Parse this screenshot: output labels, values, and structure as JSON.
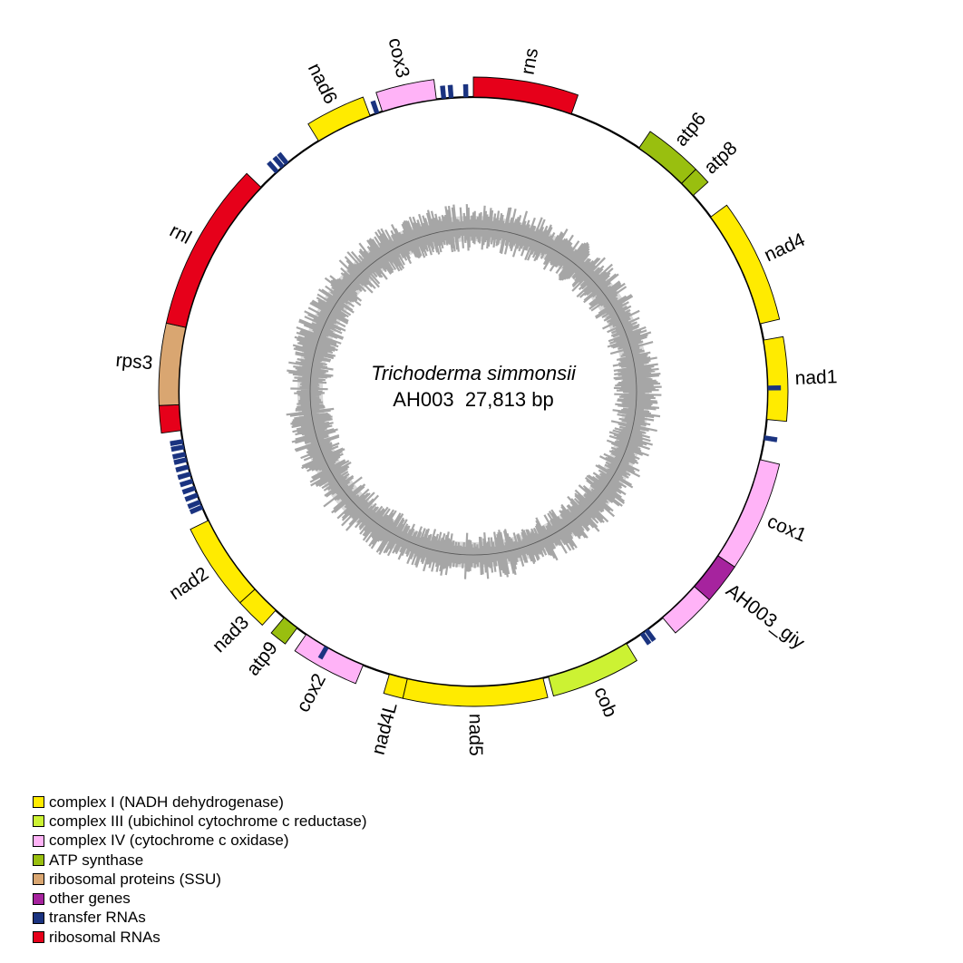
{
  "map": {
    "organism": "Trichoderma simmonsii",
    "strain": "AH003",
    "length_label": "27,813 bp",
    "genome_length": 27813
  },
  "category_colors": {
    "complex1": "#FFEB00",
    "complex3": "#CCF233",
    "complex4": "#FFB3F7",
    "atp": "#99BF0F",
    "rps": "#D9A671",
    "other": "#A6239E",
    "trna": "#1A3380",
    "rrna": "#E6001A"
  },
  "genes": [
    {
      "name": "rns",
      "category": "rrna",
      "start": 0.0,
      "end": 0.054,
      "strand": "outer",
      "label": "rns"
    },
    {
      "name": "atp6",
      "category": "atp",
      "start": 0.095,
      "end": 0.125,
      "strand": "outer",
      "label": "atp6"
    },
    {
      "name": "atp8",
      "category": "atp",
      "start": 0.125,
      "end": 0.134,
      "strand": "outer",
      "label": "atp8"
    },
    {
      "name": "nad4",
      "category": "complex1",
      "start": 0.149,
      "end": 0.213,
      "strand": "outer",
      "label": "nad4"
    },
    {
      "name": "nad1",
      "category": "complex1",
      "start": 0.222,
      "end": 0.265,
      "strand": "outer",
      "label": "nad1"
    },
    {
      "name": "cox1a",
      "category": "complex4",
      "start": 0.287,
      "end": 0.344,
      "strand": "outer",
      "label": "cox1"
    },
    {
      "name": "giy",
      "category": "other",
      "start": 0.344,
      "end": 0.365,
      "strand": "outer",
      "label": "AH003_giy"
    },
    {
      "name": "cox1b",
      "category": "complex4",
      "start": 0.365,
      "end": 0.389,
      "strand": "outer",
      "label": ""
    },
    {
      "name": "cob",
      "category": "complex3",
      "start": 0.413,
      "end": 0.459,
      "strand": "outer",
      "label": "cob"
    },
    {
      "name": "nad5",
      "category": "complex1",
      "start": 0.462,
      "end": 0.536,
      "strand": "outer",
      "label": "nad5"
    },
    {
      "name": "nad4L",
      "category": "complex1",
      "start": 0.536,
      "end": 0.546,
      "strand": "outer",
      "label": "nad4L"
    },
    {
      "name": "cox2",
      "category": "complex4",
      "start": 0.561,
      "end": 0.596,
      "strand": "outer",
      "label": "cox2"
    },
    {
      "name": "atp9",
      "category": "atp",
      "start": 0.602,
      "end": 0.611,
      "strand": "outer",
      "label": "atp9"
    },
    {
      "name": "nad3",
      "category": "complex1",
      "start": 0.617,
      "end": 0.633,
      "strand": "outer",
      "label": "nad3"
    },
    {
      "name": "nad2",
      "category": "complex1",
      "start": 0.633,
      "end": 0.678,
      "strand": "outer",
      "label": "nad2"
    },
    {
      "name": "rnl-a",
      "category": "rrna",
      "start": 0.729,
      "end": 0.743,
      "strand": "outer",
      "label": ""
    },
    {
      "name": "rps3",
      "category": "rps",
      "start": 0.743,
      "end": 0.785,
      "strand": "outer",
      "label": "rps3"
    },
    {
      "name": "rnl-b",
      "category": "rrna",
      "start": 0.785,
      "end": 0.872,
      "strand": "outer",
      "label": "rnl"
    },
    {
      "name": "nad6",
      "category": "complex1",
      "start": 0.912,
      "end": 0.943,
      "strand": "outer",
      "label": "nad6"
    },
    {
      "name": "cox3",
      "category": "complex4",
      "start": 0.95,
      "end": 0.98,
      "strand": "outer",
      "label": "cox3"
    }
  ],
  "trnas": [
    0.248,
    0.275,
    0.4,
    0.403,
    0.583,
    0.686,
    0.689,
    0.693,
    0.697,
    0.701,
    0.705,
    0.709,
    0.713,
    0.716,
    0.72,
    0.723,
    0.884,
    0.888,
    0.891,
    0.947,
    0.984,
    0.988,
    0.996
  ],
  "legend": [
    {
      "label": "complex I (NADH dehydrogenase)",
      "category": "complex1"
    },
    {
      "label": "complex III (ubichinol cytochrome c reductase)",
      "category": "complex3"
    },
    {
      "label": "complex IV (cytochrome c oxidase)",
      "category": "complex4"
    },
    {
      "label": "ATP synthase",
      "category": "atp"
    },
    {
      "label": "ribosomal proteins (SSU)",
      "category": "rps"
    },
    {
      "label": "other genes",
      "category": "other"
    },
    {
      "label": "transfer RNAs",
      "category": "trna"
    },
    {
      "label": "ribosomal RNAs",
      "category": "rrna"
    }
  ]
}
